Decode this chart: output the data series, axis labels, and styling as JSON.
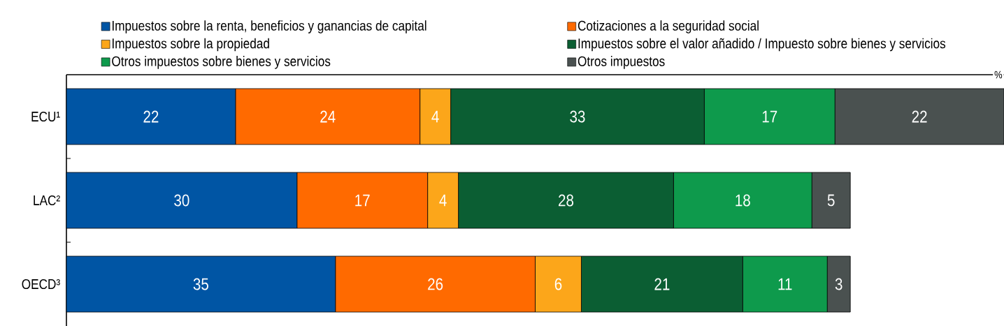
{
  "chart_data": {
    "type": "bar",
    "orientation": "horizontal",
    "stacked": true,
    "data_labels": true,
    "xlabel": "%",
    "legend": "top",
    "categories": [
      "ECU¹",
      "LAC²",
      "OECD³"
    ],
    "series": [
      {
        "name": "Impuestos sobre la renta, beneficios y ganancias de capital",
        "color": "#0055a4",
        "values": [
          22,
          30,
          35
        ]
      },
      {
        "name": "Cotizaciones a la seguridad social",
        "color": "#ff6a00",
        "values": [
          24,
          17,
          26
        ]
      },
      {
        "name": "Impuestos sobre la propiedad",
        "color": "#fca61a",
        "values": [
          4,
          4,
          6
        ]
      },
      {
        "name": "Impuestos sobre el valor añadido / Impuesto sobre bienes y servicios",
        "color": "#0b5e33",
        "values": [
          33,
          28,
          21
        ]
      },
      {
        "name": "Otros impuestos sobre bienes y servicios",
        "color": "#0e9a4c",
        "values": [
          17,
          18,
          11
        ]
      },
      {
        "name": "Otros impuestos",
        "color": "#4a5150",
        "values": [
          22,
          5,
          3
        ]
      }
    ]
  }
}
